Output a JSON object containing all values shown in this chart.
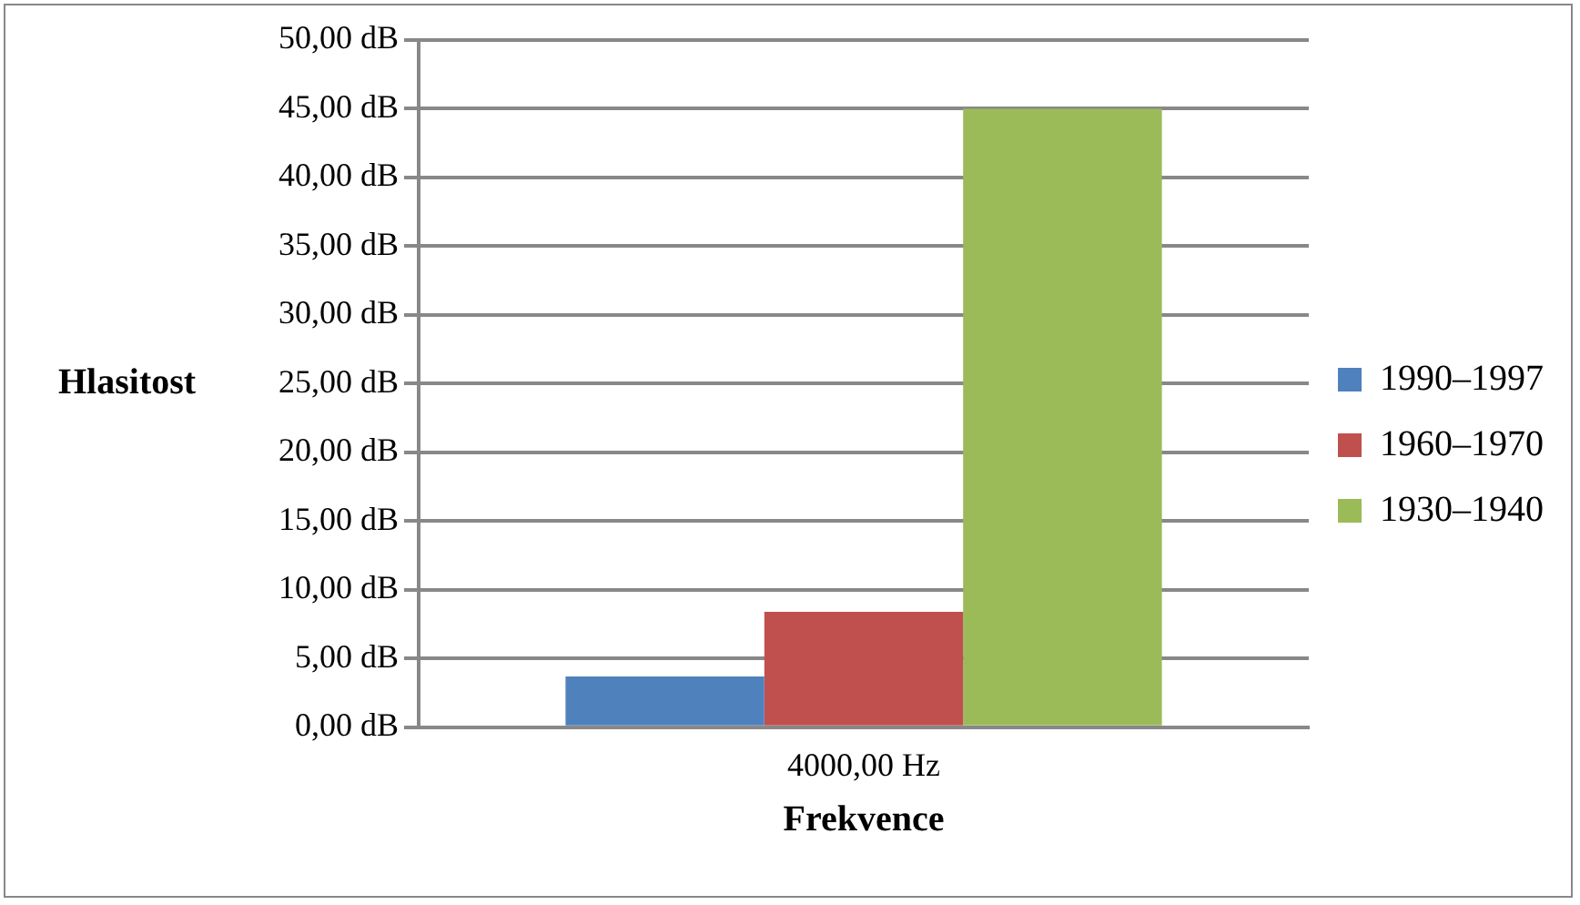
{
  "chart_data": {
    "type": "bar",
    "xlabel": "Frekvence",
    "ylabel": "Hlasitost",
    "categories": [
      "4000,00 Hz"
    ],
    "series": [
      {
        "name": "1990–1997",
        "color": "#4f81bd",
        "values": [
          3.7
        ]
      },
      {
        "name": "1960–1970",
        "color": "#c0504d",
        "values": [
          8.4
        ]
      },
      {
        "name": "1930–1940",
        "color": "#9bbb59",
        "values": [
          45
        ]
      }
    ],
    "ylim": [
      0,
      50
    ],
    "yticks": [
      {
        "value": 0,
        "label": "0,00 dB"
      },
      {
        "value": 5,
        "label": "5,00 dB"
      },
      {
        "value": 10,
        "label": "10,00 dB"
      },
      {
        "value": 15,
        "label": "15,00 dB"
      },
      {
        "value": 20,
        "label": "20,00 dB"
      },
      {
        "value": 25,
        "label": "25,00 dB"
      },
      {
        "value": 30,
        "label": "30,00 dB"
      },
      {
        "value": 35,
        "label": "35,00 dB"
      },
      {
        "value": 40,
        "label": "40,00 dB"
      },
      {
        "value": 45,
        "label": "45,00 dB"
      },
      {
        "value": 50,
        "label": "50,00 dB"
      }
    ],
    "grid": "y",
    "legend": "right"
  }
}
